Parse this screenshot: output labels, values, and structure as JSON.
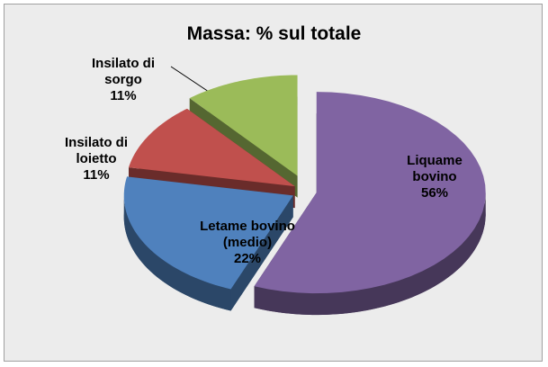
{
  "chart_data": {
    "type": "pie",
    "title": "Massa: % sul totale",
    "categories": [
      "Liquame bovino",
      "Letame bovino (medio)",
      "Insilato di loietto",
      "Insilato di sorgo"
    ],
    "values": [
      56,
      22,
      11,
      11
    ],
    "value_labels": [
      "56%",
      "22%",
      "11%",
      "11%"
    ],
    "colors": [
      "#8064a2",
      "#4f81bd",
      "#c0504d",
      "#9bbb59"
    ]
  }
}
